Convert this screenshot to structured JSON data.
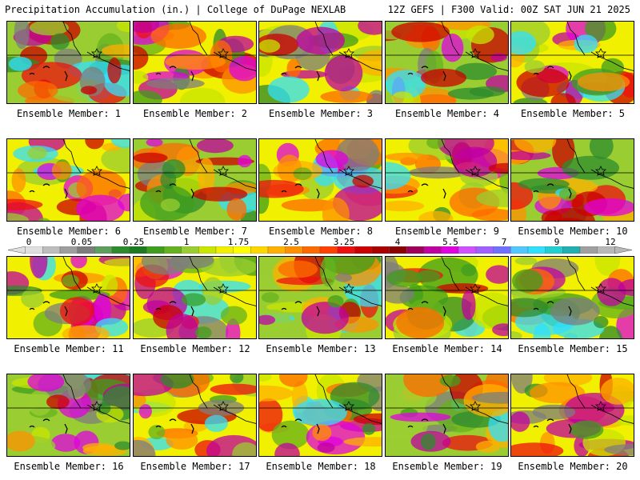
{
  "header": {
    "left": "Precipitation Accumulation (in.) | College of DuPage NEXLAB",
    "right": "12Z GEFS | F300 Valid: 00Z SAT JUN 21 2025"
  },
  "caption_prefix": "Ensemble Member: ",
  "members": [
    "1",
    "2",
    "3",
    "4",
    "5",
    "6",
    "7",
    "8",
    "9",
    "10",
    "11",
    "12",
    "13",
    "14",
    "15",
    "16",
    "17",
    "18",
    "19",
    "20"
  ],
  "color_scale": {
    "tick_labels": [
      "0",
      "0.05",
      "0.25",
      "1",
      "1.75",
      "2.5",
      "3.25",
      "4",
      "5.5",
      "7",
      "9",
      "12"
    ],
    "colors": [
      "#e0e0e0",
      "#bdbdbd",
      "#9e9e9e",
      "#7d7d7d",
      "#5e9e5e",
      "#2e8b2e",
      "#1e7a1e",
      "#3f9e1e",
      "#66b21e",
      "#9acd32",
      "#c8e600",
      "#f0f000",
      "#ffff00",
      "#ffd700",
      "#ffb000",
      "#ff9000",
      "#ff6a00",
      "#ff4000",
      "#ee1010",
      "#cc0000",
      "#aa0000",
      "#8b0000",
      "#a0005a",
      "#c000a0",
      "#e000e0",
      "#d050ff",
      "#a060ff",
      "#7070ff",
      "#50c8ff",
      "#30e0ff",
      "#20d0d0",
      "#20b0b0",
      "#a0a0a0",
      "#b8b8b8"
    ]
  }
}
